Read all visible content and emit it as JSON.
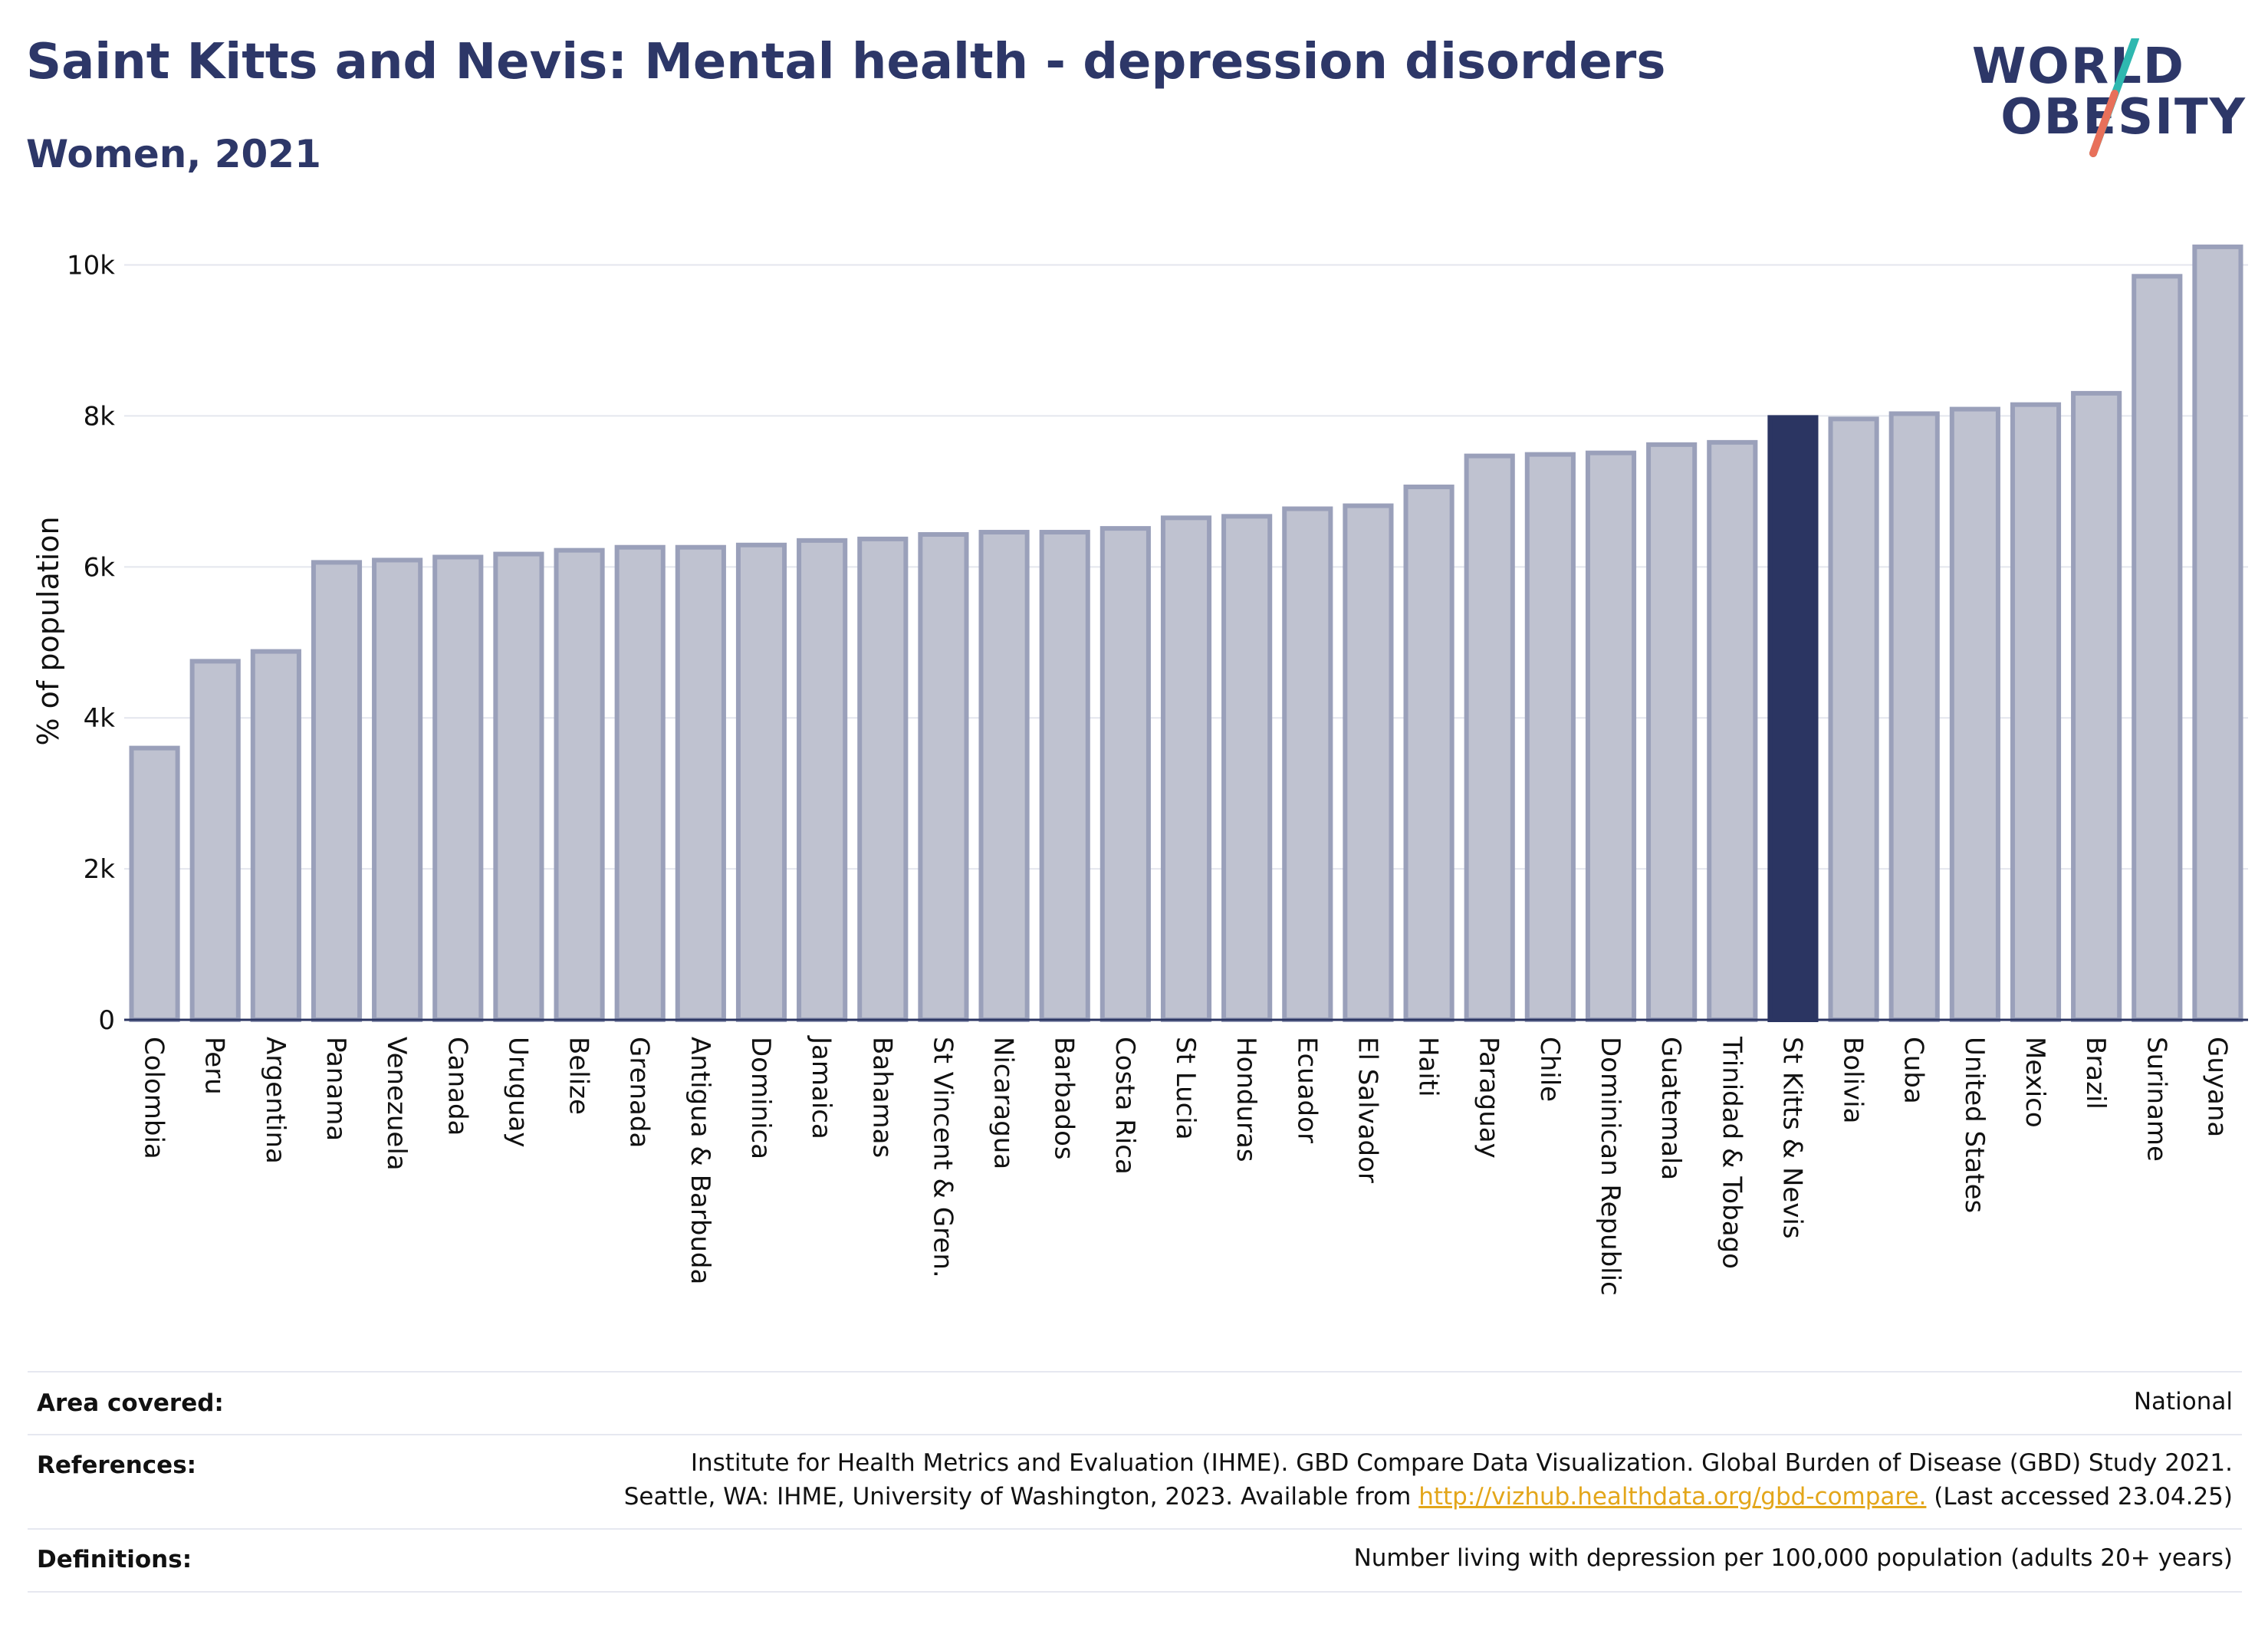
{
  "header": {
    "title": "Saint Kitts and Nevis: Mental health - depression disorders",
    "subtitle": "Women, 2021"
  },
  "logo": {
    "line1": "WORLD",
    "line2": "OBESITY",
    "colors": {
      "text": "#2d3768",
      "slash_top": "#2fb8b0",
      "slash_bottom": "#e8705a"
    }
  },
  "chart_data": {
    "type": "bar",
    "ylabel": "% of population",
    "xlabel": "",
    "ylim": [
      0,
      10300
    ],
    "yticks": [
      0,
      2000,
      4000,
      6000,
      8000,
      10000
    ],
    "ytick_labels": [
      "0",
      "2k",
      "4k",
      "6k",
      "8k",
      "10k"
    ],
    "grid": true,
    "highlight": "St Kitts & Nevis",
    "colors": {
      "bar": "#bfc2d0",
      "bar_edge": "#9aa0ba",
      "highlight": "#2b3562"
    },
    "categories": [
      "Colombia",
      "Peru",
      "Argentina",
      "Panama",
      "Venezuela",
      "Canada",
      "Uruguay",
      "Belize",
      "Grenada",
      "Antigua & Barbuda",
      "Dominica",
      "Jamaica",
      "Bahamas",
      "St Vincent & Gren.",
      "Nicaragua",
      "Barbados",
      "Costa Rica",
      "St Lucia",
      "Honduras",
      "Ecuador",
      "El Salvador",
      "Haiti",
      "Paraguay",
      "Chile",
      "Dominican Republic",
      "Guatemala",
      "Trinidad & Tobago",
      "St Kitts & Nevis",
      "Bolivia",
      "Cuba",
      "United States",
      "Mexico",
      "Brazil",
      "Suriname",
      "Guyana"
    ],
    "values": [
      3600,
      4750,
      4880,
      6060,
      6090,
      6130,
      6170,
      6220,
      6260,
      6260,
      6290,
      6350,
      6370,
      6430,
      6460,
      6460,
      6510,
      6650,
      6670,
      6770,
      6810,
      7060,
      7470,
      7490,
      7510,
      7620,
      7650,
      7980,
      7960,
      8030,
      8090,
      8150,
      8300,
      9850,
      10240
    ]
  },
  "footer": {
    "area_label": "Area covered:",
    "area_value": "National",
    "references_label": "References:",
    "references_line1": "Institute for Health Metrics and Evaluation (IHME). GBD Compare Data Visualization. Global Burden of Disease (GBD) Study 2021.",
    "references_line2_pre": "Seattle, WA: IHME, University of Washington, 2023. Available from",
    "references_link": "http://vizhub.healthdata.org/gbd-compare.",
    "references_line2_post": "(Last accessed 23.04.25)",
    "definitions_label": "Definitions:",
    "definitions_value": "Number living with depression per 100,000 population (adults 20+ years)"
  }
}
